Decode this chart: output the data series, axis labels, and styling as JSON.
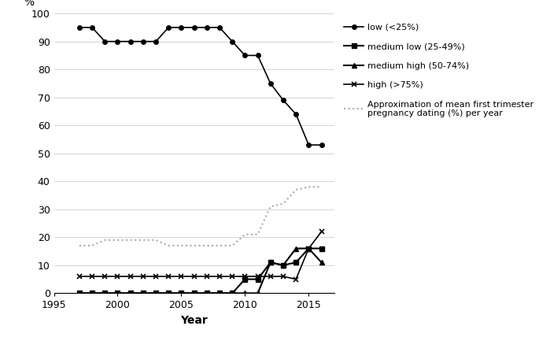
{
  "low_x": [
    1997,
    1998,
    1999,
    2000,
    2001,
    2002,
    2003,
    2004,
    2005,
    2006,
    2007,
    2008,
    2009,
    2010,
    2011,
    2012,
    2013,
    2014,
    2015,
    2016
  ],
  "low_y": [
    95,
    95,
    90,
    90,
    90,
    90,
    90,
    95,
    95,
    95,
    95,
    95,
    90,
    85,
    85,
    75,
    69,
    64,
    53,
    53
  ],
  "med_low_x": [
    1997,
    1998,
    1999,
    2000,
    2001,
    2002,
    2003,
    2004,
    2005,
    2006,
    2007,
    2008,
    2009,
    2010,
    2011,
    2012,
    2013,
    2014,
    2015,
    2016
  ],
  "med_low_y": [
    0,
    0,
    0,
    0,
    0,
    0,
    0,
    0,
    0,
    0,
    0,
    0,
    0,
    5,
    5,
    11,
    10,
    11,
    16,
    16
  ],
  "med_high_x": [
    1997,
    1998,
    1999,
    2000,
    2001,
    2002,
    2003,
    2004,
    2005,
    2006,
    2007,
    2008,
    2009,
    2010,
    2011,
    2012,
    2013,
    2014,
    2015,
    2016
  ],
  "med_high_y": [
    0,
    0,
    0,
    0,
    0,
    0,
    0,
    0,
    0,
    0,
    0,
    0,
    0,
    0,
    0,
    11,
    10,
    16,
    16,
    11
  ],
  "high_x": [
    1997,
    1998,
    1999,
    2000,
    2001,
    2002,
    2003,
    2004,
    2005,
    2006,
    2007,
    2008,
    2009,
    2010,
    2011,
    2012,
    2013,
    2014,
    2015,
    2016
  ],
  "high_y": [
    6,
    6,
    6,
    6,
    6,
    6,
    6,
    6,
    6,
    6,
    6,
    6,
    6,
    6,
    6,
    6,
    6,
    5,
    16,
    22
  ],
  "approx_x": [
    1997,
    1998,
    1999,
    2000,
    2001,
    2002,
    2003,
    2004,
    2005,
    2006,
    2007,
    2008,
    2009,
    2010,
    2011,
    2012,
    2013,
    2014,
    2015,
    2016
  ],
  "approx_y": [
    17,
    17,
    19,
    19,
    19,
    19,
    19,
    17,
    17,
    17,
    17,
    17,
    17,
    21,
    21,
    31,
    32,
    37,
    38,
    38
  ],
  "xlim": [
    1995,
    2017
  ],
  "ylim": [
    0,
    100
  ],
  "yticks": [
    0,
    10,
    20,
    30,
    40,
    50,
    60,
    70,
    80,
    90,
    100
  ],
  "xticks": [
    1995,
    2000,
    2005,
    2010,
    2015
  ],
  "xlabel": "Year",
  "ylabel": "%",
  "legend_low": "low (<25%)",
  "legend_med_low": "medium low (25-49%)",
  "legend_med_high": "medium high (50-74%)",
  "legend_high": "high (>75%)",
  "legend_approx": "Approximation of mean first trimester\npregnancy dating (%) per year",
  "line_color": "#000000",
  "approx_color": "#aaaaaa",
  "bg_color": "#ffffff"
}
